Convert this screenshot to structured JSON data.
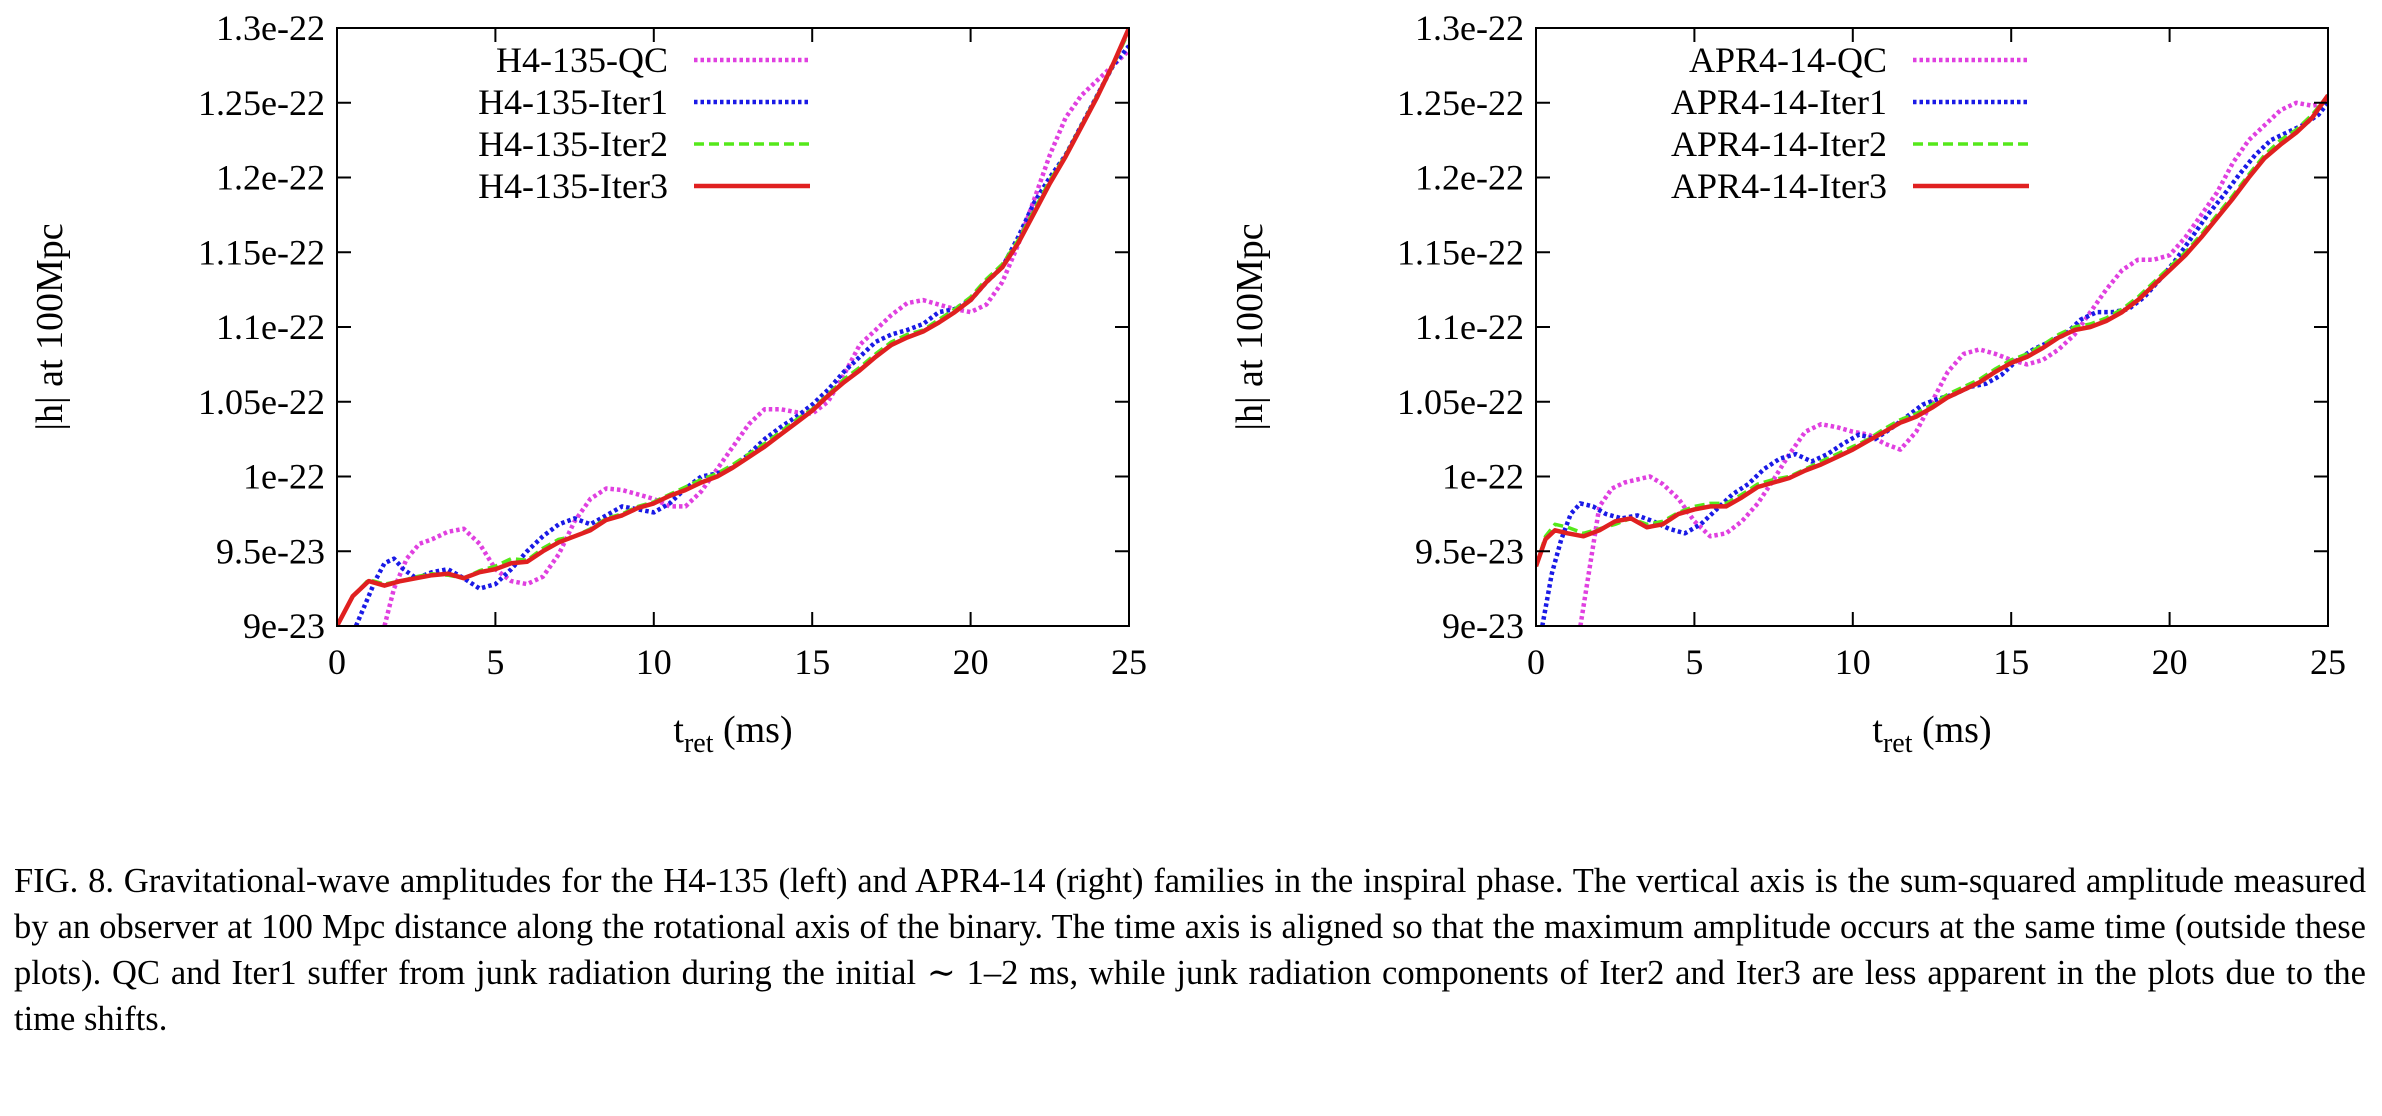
{
  "chart_data": [
    {
      "type": "line",
      "xlabel_main": "t",
      "xlabel_sub": "ret",
      "xlabel_unit": " (ms)",
      "ylabel": "|h| at 100Mpc",
      "xlim": [
        0,
        25
      ],
      "ylim": [
        9e-23,
        1.3e-22
      ],
      "xticks": [
        "0",
        "5",
        "10",
        "15",
        "20",
        "25"
      ],
      "yticks": [
        "9e-23",
        "9.5e-23",
        "1e-22",
        "1.05e-22",
        "1.1e-22",
        "1.15e-22",
        "1.2e-22",
        "1.25e-22",
        "1.3e-22"
      ],
      "legend_position": "top-left",
      "grid": false,
      "series": [
        {
          "name": "H4-135-QC",
          "color": "#e040e0",
          "style": "dotted",
          "x": [
            1.5,
            1.8,
            2.2,
            2.6,
            3.0,
            3.5,
            4.0,
            4.5,
            5.0,
            5.5,
            6.0,
            6.5,
            7.0,
            7.5,
            8.0,
            8.5,
            9.0,
            9.5,
            10.0,
            10.5,
            11.0,
            11.5,
            12.0,
            12.5,
            13.0,
            13.5,
            14.0,
            14.5,
            15.0,
            15.5,
            16.0,
            16.5,
            17.0,
            17.5,
            18.0,
            18.5,
            19.0,
            19.5,
            20.0,
            20.5,
            21.0,
            21.5,
            22.0,
            22.5,
            23.0,
            23.5,
            24.0,
            24.5,
            25.0
          ],
          "y": [
            9e-23,
            9.25e-23,
            9.45e-23,
            9.55e-23,
            9.58e-23,
            9.63e-23,
            9.65e-23,
            9.55e-23,
            9.38e-23,
            9.3e-23,
            9.28e-23,
            9.33e-23,
            9.48e-23,
            9.7e-23,
            9.85e-23,
            9.92e-23,
            9.91e-23,
            9.88e-23,
            9.85e-23,
            9.8e-23,
            9.8e-23,
            9.9e-23,
            1.005e-22,
            1.02e-22,
            1.035e-22,
            1.045e-22,
            1.045e-22,
            1.043e-22,
            1.042e-22,
            1.05e-22,
            1.068e-22,
            1.088e-22,
            1.098e-22,
            1.108e-22,
            1.116e-22,
            1.118e-22,
            1.115e-22,
            1.112e-22,
            1.11e-22,
            1.115e-22,
            1.13e-22,
            1.155e-22,
            1.185e-22,
            1.215e-22,
            1.24e-22,
            1.255e-22,
            1.265e-22,
            1.275e-22,
            1.285e-22
          ]
        },
        {
          "name": "H4-135-Iter1",
          "color": "#1a1ae6",
          "style": "dotted",
          "x": [
            0.6,
            0.9,
            1.2,
            1.5,
            1.8,
            2.1,
            2.5,
            3.0,
            3.5,
            4.0,
            4.5,
            5.0,
            5.5,
            6.0,
            6.5,
            7.0,
            7.5,
            8.0,
            8.5,
            9.0,
            9.5,
            10.0,
            10.5,
            11.0,
            11.5,
            12.0,
            12.5,
            13.0,
            13.5,
            14.0,
            14.5,
            15.0,
            15.5,
            16.0,
            16.5,
            17.0,
            17.5,
            18.0,
            18.5,
            19.0,
            19.5,
            20.0,
            20.5,
            21.0,
            21.5,
            22.0,
            22.5,
            23.0,
            23.5,
            24.0,
            24.5,
            25.0
          ],
          "y": [
            9e-23,
            9.15e-23,
            9.3e-23,
            9.42e-23,
            9.45e-23,
            9.38e-23,
            9.32e-23,
            9.36e-23,
            9.38e-23,
            9.32e-23,
            9.25e-23,
            9.28e-23,
            9.38e-23,
            9.5e-23,
            9.6e-23,
            9.68e-23,
            9.72e-23,
            9.68e-23,
            9.74e-23,
            9.8e-23,
            9.78e-23,
            9.76e-23,
            9.82e-23,
            9.92e-23,
            1e-22,
            1.002e-22,
            1.006e-22,
            1.015e-22,
            1.025e-22,
            1.033e-22,
            1.04e-22,
            1.048e-22,
            1.058e-22,
            1.07e-22,
            1.08e-22,
            1.09e-22,
            1.095e-22,
            1.098e-22,
            1.102e-22,
            1.11e-22,
            1.112e-22,
            1.118e-22,
            1.13e-22,
            1.14e-22,
            1.16e-22,
            1.183e-22,
            1.2e-22,
            1.215e-22,
            1.235e-22,
            1.255e-22,
            1.275e-22,
            1.288e-22
          ]
        },
        {
          "name": "H4-135-Iter2",
          "color": "#55e81a",
          "style": "dashed",
          "x": [
            0.0,
            0.5,
            1.0,
            1.5,
            2.0,
            2.5,
            3.0,
            3.5,
            4.0,
            4.5,
            5.0,
            5.5,
            6.0,
            6.5,
            7.0,
            7.5,
            8.0,
            8.5,
            9.0,
            9.5,
            10.0,
            10.5,
            11.0,
            11.5,
            12.0,
            12.5,
            13.0,
            13.5,
            14.0,
            14.5,
            15.0,
            15.5,
            16.0,
            16.5,
            17.0,
            17.5,
            18.0,
            18.5,
            19.0,
            19.5,
            20.0,
            20.5,
            21.0,
            21.5,
            22.0,
            22.5,
            23.0,
            23.5,
            24.0,
            24.5,
            25.0
          ],
          "y": [
            9e-23,
            9.2e-23,
            9.31e-23,
            9.28e-23,
            9.3e-23,
            9.33e-23,
            9.35e-23,
            9.34e-23,
            9.32e-23,
            9.37e-23,
            9.4e-23,
            9.45e-23,
            9.44e-23,
            9.52e-23,
            9.58e-23,
            9.6e-23,
            9.65e-23,
            9.72e-23,
            9.75e-23,
            9.8e-23,
            9.83e-23,
            9.88e-23,
            9.93e-23,
            9.98e-23,
            1.002e-22,
            1.008e-22,
            1.015e-22,
            1.022e-22,
            1.03e-22,
            1.038e-22,
            1.045e-22,
            1.055e-22,
            1.065e-22,
            1.073e-22,
            1.082e-22,
            1.09e-22,
            1.095e-22,
            1.098e-22,
            1.105e-22,
            1.112e-22,
            1.12e-22,
            1.132e-22,
            1.142e-22,
            1.158e-22,
            1.178e-22,
            1.198e-22,
            1.215e-22,
            1.235e-22,
            1.255e-22,
            1.275e-22,
            1.298e-22
          ]
        },
        {
          "name": "H4-135-Iter3",
          "color": "#e02020",
          "style": "solid",
          "x": [
            0.0,
            0.5,
            1.0,
            1.5,
            2.0,
            2.5,
            3.0,
            3.5,
            4.0,
            4.5,
            5.0,
            5.5,
            6.0,
            6.5,
            7.0,
            7.5,
            8.0,
            8.5,
            9.0,
            9.5,
            10.0,
            10.5,
            11.0,
            11.5,
            12.0,
            12.5,
            13.0,
            13.5,
            14.0,
            14.5,
            15.0,
            15.5,
            16.0,
            16.5,
            17.0,
            17.5,
            18.0,
            18.5,
            19.0,
            19.5,
            20.0,
            20.5,
            21.0,
            21.5,
            22.0,
            22.5,
            23.0,
            23.5,
            24.0,
            24.5,
            25.0
          ],
          "y": [
            9e-23,
            9.2e-23,
            9.3e-23,
            9.27e-23,
            9.3e-23,
            9.32e-23,
            9.34e-23,
            9.35e-23,
            9.32e-23,
            9.36e-23,
            9.38e-23,
            9.42e-23,
            9.43e-23,
            9.5e-23,
            9.56e-23,
            9.6e-23,
            9.64e-23,
            9.71e-23,
            9.74e-23,
            9.79e-23,
            9.82e-23,
            9.87e-23,
            9.91e-23,
            9.96e-23,
            1e-22,
            1.006e-22,
            1.013e-22,
            1.02e-22,
            1.028e-22,
            1.036e-22,
            1.044e-22,
            1.054e-22,
            1.063e-22,
            1.071e-22,
            1.08e-22,
            1.088e-22,
            1.093e-22,
            1.097e-22,
            1.103e-22,
            1.11e-22,
            1.118e-22,
            1.13e-22,
            1.14e-22,
            1.156e-22,
            1.176e-22,
            1.196e-22,
            1.214e-22,
            1.234e-22,
            1.254e-22,
            1.276e-22,
            1.3e-22
          ]
        }
      ]
    },
    {
      "type": "line",
      "xlabel_main": "t",
      "xlabel_sub": "ret",
      "xlabel_unit": " (ms)",
      "ylabel": "|h| at 100Mpc",
      "xlim": [
        0,
        25
      ],
      "ylim": [
        9e-23,
        1.3e-22
      ],
      "xticks": [
        "0",
        "5",
        "10",
        "15",
        "20",
        "25"
      ],
      "yticks": [
        "9e-23",
        "9.5e-23",
        "1e-22",
        "1.05e-22",
        "1.1e-22",
        "1.15e-22",
        "1.2e-22",
        "1.25e-22",
        "1.3e-22"
      ],
      "legend_position": "top-left",
      "grid": false,
      "series": [
        {
          "name": "APR4-14-QC",
          "color": "#e040e0",
          "style": "dotted",
          "x": [
            1.4,
            1.7,
            2.0,
            2.4,
            2.8,
            3.2,
            3.6,
            4.0,
            4.5,
            5.0,
            5.5,
            6.0,
            6.5,
            7.0,
            7.5,
            8.0,
            8.5,
            9.0,
            9.5,
            10.0,
            10.5,
            11.0,
            11.5,
            12.0,
            12.5,
            13.0,
            13.5,
            14.0,
            14.5,
            15.0,
            15.5,
            16.0,
            16.5,
            17.0,
            17.5,
            18.0,
            18.5,
            19.0,
            19.5,
            20.0,
            20.5,
            21.0,
            21.5,
            22.0,
            22.5,
            23.0,
            23.5,
            24.0,
            24.5,
            25.0
          ],
          "y": [
            9e-23,
            9.4e-23,
            9.8e-23,
            9.92e-23,
            9.96e-23,
            9.98e-23,
            1e-22,
            9.95e-23,
            9.85e-23,
            9.7e-23,
            9.6e-23,
            9.62e-23,
            9.7e-23,
            9.82e-23,
            9.98e-23,
            1.015e-22,
            1.03e-22,
            1.035e-22,
            1.033e-22,
            1.03e-22,
            1.028e-22,
            1.022e-22,
            1.018e-22,
            1.03e-22,
            1.05e-22,
            1.07e-22,
            1.082e-22,
            1.085e-22,
            1.082e-22,
            1.078e-22,
            1.075e-22,
            1.078e-22,
            1.085e-22,
            1.095e-22,
            1.11e-22,
            1.125e-22,
            1.138e-22,
            1.145e-22,
            1.145e-22,
            1.148e-22,
            1.16e-22,
            1.175e-22,
            1.19e-22,
            1.21e-22,
            1.225e-22,
            1.235e-22,
            1.245e-22,
            1.25e-22,
            1.248e-22,
            1.25e-22
          ]
        },
        {
          "name": "APR4-14-Iter1",
          "color": "#1a1ae6",
          "style": "dotted",
          "x": [
            0.2,
            0.5,
            0.8,
            1.1,
            1.4,
            1.8,
            2.2,
            2.7,
            3.2,
            3.7,
            4.2,
            4.7,
            5.2,
            5.7,
            6.2,
            6.7,
            7.2,
            7.7,
            8.2,
            8.7,
            9.2,
            9.7,
            10.2,
            10.7,
            11.2,
            11.7,
            12.2,
            12.7,
            13.2,
            13.7,
            14.2,
            14.7,
            15.2,
            15.7,
            16.2,
            16.7,
            17.2,
            17.7,
            18.2,
            18.7,
            19.2,
            19.7,
            20.2,
            20.7,
            21.2,
            21.7,
            22.2,
            22.7,
            23.2,
            23.7,
            24.2,
            24.7,
            25.0
          ],
          "y": [
            9e-23,
            9.35e-23,
            9.58e-23,
            9.75e-23,
            9.82e-23,
            9.8e-23,
            9.75e-23,
            9.72e-23,
            9.74e-23,
            9.7e-23,
            9.65e-23,
            9.62e-23,
            9.68e-23,
            9.78e-23,
            9.88e-23,
            9.95e-23,
            1.005e-22,
            1.012e-22,
            1.015e-22,
            1.01e-22,
            1.015e-22,
            1.022e-22,
            1.028e-22,
            1.025e-22,
            1.032e-22,
            1.04e-22,
            1.048e-22,
            1.052e-22,
            1.055e-22,
            1.06e-22,
            1.062e-22,
            1.068e-22,
            1.078e-22,
            1.085e-22,
            1.09e-22,
            1.095e-22,
            1.105e-22,
            1.11e-22,
            1.11e-22,
            1.112e-22,
            1.12e-22,
            1.132e-22,
            1.145e-22,
            1.16e-22,
            1.175e-22,
            1.188e-22,
            1.202e-22,
            1.215e-22,
            1.225e-22,
            1.23e-22,
            1.235e-22,
            1.242e-22,
            1.25e-22
          ]
        },
        {
          "name": "APR4-14-Iter2",
          "color": "#55e81a",
          "style": "dashed",
          "x": [
            0.0,
            0.3,
            0.6,
            1.0,
            1.5,
            2.0,
            2.5,
            3.0,
            3.5,
            4.0,
            4.5,
            5.0,
            5.5,
            6.0,
            6.5,
            7.0,
            7.5,
            8.0,
            8.5,
            9.0,
            9.5,
            10.0,
            10.5,
            11.0,
            11.5,
            12.0,
            12.5,
            13.0,
            13.5,
            14.0,
            14.5,
            15.0,
            15.5,
            16.0,
            16.5,
            17.0,
            17.5,
            18.0,
            18.5,
            19.0,
            19.5,
            20.0,
            20.5,
            21.0,
            21.5,
            22.0,
            22.5,
            23.0,
            23.5,
            24.0,
            24.5,
            25.0
          ],
          "y": [
            9.4e-23,
            9.6e-23,
            9.68e-23,
            9.66e-23,
            9.62e-23,
            9.65e-23,
            9.68e-23,
            9.72e-23,
            9.68e-23,
            9.7e-23,
            9.76e-23,
            9.8e-23,
            9.82e-23,
            9.82e-23,
            9.88e-23,
            9.95e-23,
            9.98e-23,
            1e-22,
            1.005e-22,
            1.01e-22,
            1.015e-22,
            1.02e-22,
            1.025e-22,
            1.032e-22,
            1.038e-22,
            1.042e-22,
            1.048e-22,
            1.055e-22,
            1.06e-22,
            1.065e-22,
            1.072e-22,
            1.078e-22,
            1.082e-22,
            1.088e-22,
            1.095e-22,
            1.1e-22,
            1.102e-22,
            1.106e-22,
            1.112e-22,
            1.12e-22,
            1.13e-22,
            1.14e-22,
            1.15e-22,
            1.162e-22,
            1.175e-22,
            1.188e-22,
            1.202e-22,
            1.215e-22,
            1.225e-22,
            1.232e-22,
            1.242e-22,
            1.255e-22
          ]
        },
        {
          "name": "APR4-14-Iter3",
          "color": "#e02020",
          "style": "solid",
          "x": [
            0.0,
            0.3,
            0.6,
            1.0,
            1.5,
            2.0,
            2.5,
            3.0,
            3.5,
            4.0,
            4.5,
            5.0,
            5.5,
            6.0,
            6.5,
            7.0,
            7.5,
            8.0,
            8.5,
            9.0,
            9.5,
            10.0,
            10.5,
            11.0,
            11.5,
            12.0,
            12.5,
            13.0,
            13.5,
            14.0,
            14.5,
            15.0,
            15.5,
            16.0,
            16.5,
            17.0,
            17.5,
            18.0,
            18.5,
            19.0,
            19.5,
            20.0,
            20.5,
            21.0,
            21.5,
            22.0,
            22.5,
            23.0,
            23.5,
            24.0,
            24.5,
            25.0
          ],
          "y": [
            9.4e-23,
            9.58e-23,
            9.64e-23,
            9.62e-23,
            9.6e-23,
            9.64e-23,
            9.7e-23,
            9.72e-23,
            9.66e-23,
            9.68e-23,
            9.75e-23,
            9.78e-23,
            9.8e-23,
            9.8e-23,
            9.86e-23,
            9.93e-23,
            9.96e-23,
            9.99e-23,
            1.004e-22,
            1.008e-22,
            1.013e-22,
            1.018e-22,
            1.024e-22,
            1.03e-22,
            1.036e-22,
            1.04e-22,
            1.046e-22,
            1.053e-22,
            1.058e-22,
            1.063e-22,
            1.07e-22,
            1.076e-22,
            1.08e-22,
            1.086e-22,
            1.093e-22,
            1.098e-22,
            1.1e-22,
            1.104e-22,
            1.11e-22,
            1.118e-22,
            1.128e-22,
            1.138e-22,
            1.148e-22,
            1.16e-22,
            1.173e-22,
            1.186e-22,
            1.2e-22,
            1.213e-22,
            1.222e-22,
            1.23e-22,
            1.24e-22,
            1.255e-22
          ]
        }
      ]
    }
  ],
  "caption": "FIG. 8.  Gravitational-wave amplitudes for the H4-135 (left) and APR4-14 (right) families in the inspiral phase. The vertical axis is the sum-squared amplitude measured by an observer at 100 Mpc distance along the rotational axis of the binary. The time axis is aligned so that the maximum amplitude occurs at the same time (outside these plots). QC and Iter1 suffer from junk radiation during the initial ∼ 1–2 ms, while junk radiation components of Iter2 and Iter3 are less apparent in the plots due to the time shifts."
}
